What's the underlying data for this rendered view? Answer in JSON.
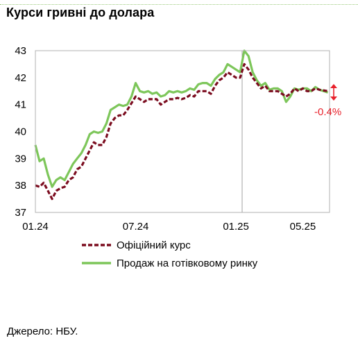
{
  "title": "Курси гривні до долара",
  "source": "Джерело: НБУ.",
  "annotation": "-0.4%",
  "colors": {
    "official": "#7b0c1f",
    "cash": "#7dc65a",
    "annotation": "#e8212b",
    "frame": "#b0b0b0"
  },
  "chart_data": {
    "type": "line",
    "title": "Курси гривні до долара",
    "xlabel": "",
    "ylabel": "",
    "x_ticks": [
      "01.24",
      "07.24",
      "01.25",
      "05.25"
    ],
    "ylim": [
      37,
      43
    ],
    "y_ticks": [
      37,
      38,
      39,
      40,
      41,
      42,
      43
    ],
    "grid": false,
    "legend_position": "bottom",
    "series": [
      {
        "name": "Офіційний курс",
        "style": "dashed",
        "x": [
          "01.24",
          "01.24",
          "01.24",
          "01.24",
          "02.24",
          "02.24",
          "02.24",
          "02.24",
          "03.24",
          "03.24",
          "03.24",
          "03.24",
          "04.24",
          "04.24",
          "04.24",
          "04.24",
          "05.24",
          "05.24",
          "05.24",
          "05.24",
          "06.24",
          "06.24",
          "06.24",
          "06.24",
          "07.24",
          "07.24",
          "07.24",
          "07.24",
          "08.24",
          "08.24",
          "08.24",
          "08.24",
          "09.24",
          "09.24",
          "09.24",
          "09.24",
          "10.24",
          "10.24",
          "10.24",
          "10.24",
          "11.24",
          "11.24",
          "11.24",
          "11.24",
          "12.24",
          "12.24",
          "12.24",
          "12.24",
          "01.25",
          "01.25",
          "01.25",
          "01.25",
          "02.25",
          "02.25",
          "02.25",
          "02.25",
          "03.25",
          "03.25",
          "03.25",
          "03.25",
          "04.25",
          "04.25",
          "04.25",
          "04.25",
          "05.25",
          "05.25",
          "05.25",
          "05.25",
          "06.25",
          "06.25"
        ],
        "values": [
          38.0,
          37.95,
          38.1,
          37.8,
          37.5,
          37.8,
          37.9,
          37.95,
          38.2,
          38.3,
          38.6,
          38.7,
          39.0,
          39.3,
          39.6,
          39.5,
          39.5,
          39.8,
          40.3,
          40.5,
          40.6,
          40.6,
          40.8,
          41.05,
          41.3,
          41.2,
          41.1,
          41.2,
          41.2,
          41.2,
          41.0,
          41.1,
          41.2,
          41.2,
          41.25,
          41.2,
          41.25,
          41.35,
          41.3,
          41.5,
          41.5,
          41.5,
          41.4,
          41.7,
          41.9,
          42.0,
          42.2,
          42.1,
          42.0,
          42.0,
          42.5,
          42.3,
          42.0,
          41.8,
          41.6,
          41.7,
          41.5,
          41.5,
          41.5,
          41.4,
          41.3,
          41.4,
          41.6,
          41.5,
          41.6,
          41.5,
          41.5,
          41.6,
          41.55,
          41.5
        ]
      },
      {
        "name": "Продаж на готівковому ринку",
        "style": "solid",
        "x": [
          "01.24",
          "01.24",
          "01.24",
          "01.24",
          "02.24",
          "02.24",
          "02.24",
          "02.24",
          "03.24",
          "03.24",
          "03.24",
          "03.24",
          "04.24",
          "04.24",
          "04.24",
          "04.24",
          "05.24",
          "05.24",
          "05.24",
          "05.24",
          "06.24",
          "06.24",
          "06.24",
          "06.24",
          "07.24",
          "07.24",
          "07.24",
          "07.24",
          "08.24",
          "08.24",
          "08.24",
          "08.24",
          "09.24",
          "09.24",
          "09.24",
          "09.24",
          "10.24",
          "10.24",
          "10.24",
          "10.24",
          "11.24",
          "11.24",
          "11.24",
          "11.24",
          "12.24",
          "12.24",
          "12.24",
          "12.24",
          "01.25",
          "01.25",
          "01.25",
          "01.25",
          "02.25",
          "02.25",
          "02.25",
          "02.25",
          "03.25",
          "03.25",
          "03.25",
          "03.25",
          "04.25",
          "04.25",
          "04.25",
          "04.25",
          "05.25",
          "05.25",
          "05.25",
          "05.25",
          "06.25",
          "06.25"
        ],
        "values": [
          39.5,
          38.9,
          39.0,
          38.4,
          37.95,
          38.2,
          38.3,
          38.2,
          38.5,
          38.8,
          39.0,
          39.2,
          39.5,
          39.9,
          40.0,
          39.95,
          40.0,
          40.3,
          40.8,
          40.9,
          41.0,
          40.95,
          41.0,
          41.3,
          41.8,
          41.5,
          41.45,
          41.5,
          41.4,
          41.45,
          41.3,
          41.35,
          41.5,
          41.45,
          41.5,
          41.45,
          41.5,
          41.6,
          41.55,
          41.75,
          41.8,
          41.8,
          41.7,
          41.95,
          42.1,
          42.2,
          42.5,
          42.4,
          42.3,
          42.2,
          43.0,
          42.8,
          42.2,
          41.9,
          41.7,
          41.8,
          41.55,
          41.6,
          41.6,
          41.5,
          41.1,
          41.3,
          41.6,
          41.55,
          41.6,
          41.6,
          41.5,
          41.65,
          41.55,
          41.45
        ]
      }
    ]
  }
}
